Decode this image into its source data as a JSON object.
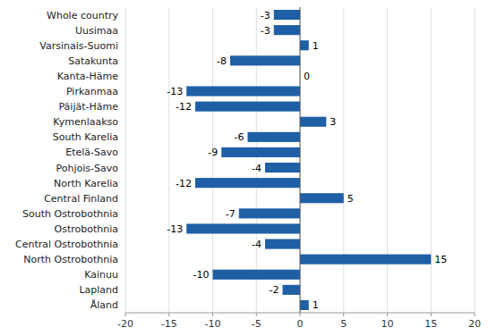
{
  "chart_data": {
    "type": "bar",
    "orientation": "horizontal",
    "categories": [
      "Whole country",
      "Uusimaa",
      "Varsinais-Suomi",
      "Satakunta",
      "Kanta-Häme",
      "Pirkanmaa",
      "Päijät-Häme",
      "Kymenlaakso",
      "South Karelia",
      "Etelä-Savo",
      "Pohjois-Savo",
      "North Karelia",
      "Central Finland",
      "South Ostrobothnia",
      "Ostrobothnia",
      "Central Ostrobothnia",
      "North Ostrobothnia",
      "Kainuu",
      "Lapland",
      "Åland"
    ],
    "values": [
      -3,
      -3,
      1,
      -8,
      0,
      -13,
      -12,
      3,
      -6,
      -9,
      -4,
      -12,
      5,
      -7,
      -13,
      -4,
      15,
      -10,
      -2,
      1
    ],
    "color": "#1F5FA6",
    "xlim": [
      -20,
      20
    ],
    "xticks": [
      -20,
      -15,
      -10,
      -5,
      0,
      5,
      10,
      15,
      20
    ],
    "grid": true,
    "data_labels": true
  }
}
